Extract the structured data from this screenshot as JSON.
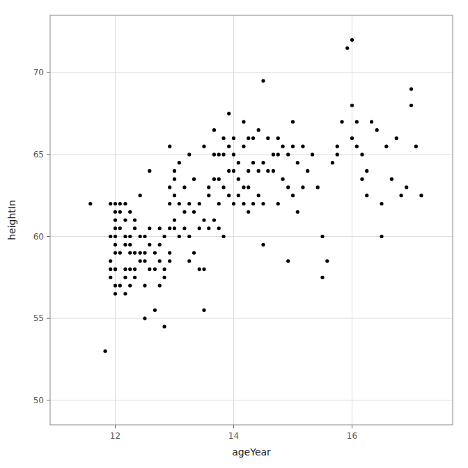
{
  "chart_data": {
    "type": "scatter",
    "xlabel": "ageYear",
    "ylabel": "heightIn",
    "x": [
      11.58,
      11.83,
      11.92,
      11.92,
      11.92,
      11.92,
      11.92,
      12.0,
      12.0,
      12.0,
      12.0,
      12.0,
      12.0,
      12.0,
      12.0,
      12.0,
      12.0,
      12.0,
      12.08,
      12.08,
      12.08,
      12.08,
      12.08,
      12.17,
      12.17,
      12.17,
      12.17,
      12.17,
      12.17,
      12.17,
      12.25,
      12.25,
      12.25,
      12.25,
      12.25,
      12.25,
      12.33,
      12.33,
      12.33,
      12.33,
      12.33,
      12.42,
      12.42,
      12.42,
      12.42,
      12.5,
      12.5,
      12.5,
      12.5,
      12.5,
      12.58,
      12.58,
      12.58,
      12.58,
      12.67,
      12.67,
      12.67,
      12.75,
      12.75,
      12.75,
      12.75,
      12.83,
      12.83,
      12.83,
      12.83,
      12.92,
      12.92,
      12.92,
      12.92,
      12.92,
      12.92,
      13.0,
      13.0,
      13.0,
      13.0,
      13.0,
      13.08,
      13.08,
      13.08,
      13.17,
      13.17,
      13.17,
      13.25,
      13.25,
      13.25,
      13.25,
      13.33,
      13.33,
      13.33,
      13.42,
      13.42,
      13.42,
      13.5,
      13.5,
      13.5,
      13.5,
      13.58,
      13.58,
      13.58,
      13.67,
      13.67,
      13.67,
      13.67,
      13.75,
      13.75,
      13.75,
      13.75,
      13.83,
      13.83,
      13.83,
      13.83,
      13.92,
      13.92,
      13.92,
      13.92,
      14.0,
      14.0,
      14.0,
      14.0,
      14.08,
      14.08,
      14.08,
      14.17,
      14.17,
      14.17,
      14.17,
      14.25,
      14.25,
      14.25,
      14.25,
      14.33,
      14.33,
      14.33,
      14.42,
      14.42,
      14.42,
      14.5,
      14.5,
      14.5,
      14.5,
      14.58,
      14.58,
      14.67,
      14.67,
      14.75,
      14.75,
      14.75,
      14.83,
      14.83,
      14.92,
      14.92,
      14.92,
      15.0,
      15.0,
      15.0,
      15.08,
      15.08,
      15.17,
      15.17,
      15.25,
      15.33,
      15.42,
      15.5,
      15.5,
      15.58,
      15.67,
      15.75,
      15.75,
      15.83,
      15.92,
      16.0,
      16.0,
      16.0,
      16.08,
      16.08,
      16.17,
      16.17,
      16.25,
      16.25,
      16.33,
      16.42,
      16.5,
      16.5,
      16.58,
      16.67,
      16.75,
      16.83,
      16.92,
      17.0,
      17.0,
      17.08,
      17.17
    ],
    "y": [
      62.0,
      53.0,
      62.0,
      60.0,
      58.0,
      57.5,
      58.5,
      61.5,
      57.0,
      56.5,
      58.0,
      59.0,
      60.0,
      59.5,
      58.0,
      60.5,
      61.0,
      62.0,
      60.5,
      61.5,
      62.0,
      59.0,
      57.0,
      56.5,
      57.5,
      58.0,
      59.5,
      60.0,
      62.0,
      61.0,
      57.0,
      58.0,
      59.0,
      60.0,
      59.5,
      61.5,
      58.0,
      59.0,
      60.5,
      61.0,
      57.5,
      58.5,
      59.0,
      60.0,
      62.5,
      55.0,
      57.0,
      58.5,
      59.0,
      60.0,
      58.0,
      59.5,
      60.5,
      64.0,
      55.5,
      58.0,
      59.0,
      57.0,
      58.5,
      59.5,
      60.5,
      54.5,
      57.5,
      60.0,
      58.0,
      59.0,
      60.5,
      62.0,
      63.0,
      58.5,
      65.5,
      60.5,
      61.0,
      62.5,
      63.5,
      64.0,
      60.0,
      62.0,
      64.5,
      60.5,
      61.5,
      63.0,
      58.5,
      60.0,
      62.0,
      65.0,
      59.0,
      61.5,
      63.5,
      58.0,
      60.5,
      62.0,
      55.5,
      58.0,
      61.0,
      65.5,
      60.5,
      62.5,
      63.0,
      61.0,
      63.5,
      65.0,
      66.5,
      60.5,
      62.0,
      63.5,
      65.0,
      60.0,
      63.0,
      65.0,
      66.0,
      62.5,
      64.0,
      65.5,
      67.5,
      62.0,
      64.0,
      65.0,
      66.0,
      62.5,
      63.5,
      64.5,
      62.0,
      63.0,
      65.5,
      67.0,
      61.5,
      63.0,
      64.0,
      66.0,
      62.0,
      64.5,
      66.0,
      62.5,
      64.0,
      66.5,
      59.5,
      62.0,
      64.5,
      69.5,
      64.0,
      66.0,
      64.0,
      65.0,
      62.0,
      65.0,
      66.0,
      63.5,
      65.5,
      58.5,
      63.0,
      65.0,
      62.5,
      65.5,
      67.0,
      61.5,
      64.5,
      63.0,
      65.5,
      64.0,
      65.0,
      63.0,
      60.0,
      57.5,
      58.5,
      64.5,
      65.0,
      65.5,
      67.0,
      71.5,
      68.0,
      72.0,
      66.0,
      65.5,
      67.0,
      63.5,
      65.0,
      62.5,
      64.0,
      67.0,
      66.5,
      60.0,
      62.0,
      65.5,
      63.5,
      66.0,
      62.5,
      63.0,
      69.0,
      68.0,
      65.5,
      62.5
    ],
    "xlim": [
      10.9,
      17.7
    ],
    "ylim": [
      48.5,
      73.5
    ],
    "xticks": [
      12,
      14,
      16
    ],
    "yticks": [
      50,
      55,
      60,
      65,
      70
    ],
    "color": "#000000",
    "grid": true
  }
}
